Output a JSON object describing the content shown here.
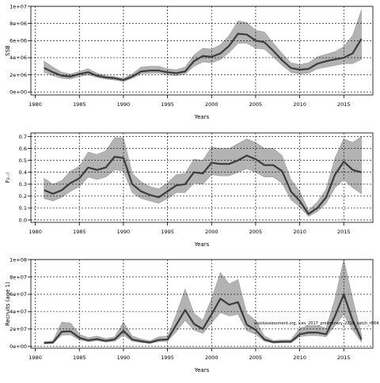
{
  "figure": {
    "watermark": "stockassessment.org, ices_2017_preliminary_2018_catch_r664"
  },
  "chart_data": [
    {
      "type": "line",
      "ylabel": "SSB",
      "xlabel": "Years",
      "xlim": [
        1979.5,
        2018.3
      ],
      "xticks": [
        1980,
        1985,
        1990,
        1995,
        2000,
        2005,
        2010,
        2015
      ],
      "ylim": [
        -350000,
        10000000
      ],
      "yticks": [
        0,
        2000000,
        4000000,
        6000000,
        8000000,
        10000000
      ],
      "ytick_labels": [
        "0e+00",
        "2e+06",
        "4e+06",
        "6e+06",
        "8e+06",
        "1e+07"
      ],
      "grid": true,
      "x": [
        1981,
        1982,
        1983,
        1984,
        1985,
        1986,
        1987,
        1988,
        1989,
        1990,
        1991,
        1992,
        1993,
        1994,
        1995,
        1996,
        1997,
        1998,
        1999,
        2000,
        2001,
        2002,
        2003,
        2004,
        2005,
        2006,
        2007,
        2008,
        2009,
        2010,
        2011,
        2012,
        2013,
        2014,
        2015,
        2016,
        2017
      ],
      "estimate": [
        2800000,
        2300000,
        1900000,
        1800000,
        2100000,
        2300000,
        1900000,
        1700000,
        1600000,
        1400000,
        1800000,
        2400000,
        2500000,
        2500000,
        2300000,
        2200000,
        2400000,
        3600000,
        4200000,
        4100000,
        4500000,
        5400000,
        6800000,
        6700000,
        6000000,
        5800000,
        4800000,
        3700000,
        2800000,
        2600000,
        2700000,
        3300000,
        3600000,
        3800000,
        4000000,
        4500000,
        6200000
      ],
      "lower": [
        2300000,
        1900000,
        1600000,
        1500000,
        1800000,
        2000000,
        1700000,
        1500000,
        1400000,
        1200000,
        1600000,
        2100000,
        2200000,
        2200000,
        2000000,
        1900000,
        2100000,
        3000000,
        3500000,
        3400000,
        3800000,
        4600000,
        5700000,
        5700000,
        5100000,
        5000000,
        4100000,
        3100000,
        2300000,
        2100000,
        2200000,
        2700000,
        2900000,
        3100000,
        3300000,
        3300000,
        3800000
      ],
      "upper": [
        3600000,
        2900000,
        2300000,
        2100000,
        2400000,
        2700000,
        2200000,
        1900000,
        1800000,
        1600000,
        2100000,
        2900000,
        3000000,
        3000000,
        2700000,
        2600000,
        2900000,
        4300000,
        5100000,
        5000000,
        5500000,
        6600000,
        8300000,
        8100000,
        7200000,
        7000000,
        5700000,
        4500000,
        3400000,
        3200000,
        3400000,
        4100000,
        4400000,
        4700000,
        5300000,
        6600000,
        9600000
      ]
    },
    {
      "type": "line",
      "ylabel": "F₂₋₇",
      "xlabel": "Years",
      "xlim": [
        1979.5,
        2018.3
      ],
      "xticks": [
        1980,
        1985,
        1990,
        1995,
        2000,
        2005,
        2010,
        2015
      ],
      "ylim": [
        -0.02,
        0.73
      ],
      "yticks": [
        0.0,
        0.1,
        0.2,
        0.3,
        0.4,
        0.5,
        0.6,
        0.7
      ],
      "ytick_labels": [
        "0.0",
        "0.1",
        "0.2",
        "0.3",
        "0.4",
        "0.5",
        "0.6",
        "0.7"
      ],
      "grid": true,
      "x": [
        1981,
        1982,
        1983,
        1984,
        1985,
        1986,
        1987,
        1988,
        1989,
        1990,
        1991,
        1992,
        1993,
        1994,
        1995,
        1996,
        1997,
        1998,
        1999,
        2000,
        2001,
        2002,
        2003,
        2004,
        2005,
        2006,
        2007,
        2008,
        2009,
        2010,
        2011,
        2012,
        2013,
        2014,
        2015,
        2016,
        2017
      ],
      "estimate": [
        0.25,
        0.22,
        0.25,
        0.31,
        0.35,
        0.44,
        0.42,
        0.44,
        0.53,
        0.52,
        0.3,
        0.24,
        0.21,
        0.19,
        0.24,
        0.29,
        0.3,
        0.4,
        0.39,
        0.48,
        0.47,
        0.47,
        0.5,
        0.54,
        0.51,
        0.46,
        0.46,
        0.41,
        0.24,
        0.16,
        0.05,
        0.1,
        0.19,
        0.38,
        0.49,
        0.42,
        0.4
      ],
      "lower": [
        0.18,
        0.16,
        0.19,
        0.24,
        0.28,
        0.36,
        0.34,
        0.36,
        0.42,
        0.41,
        0.23,
        0.18,
        0.16,
        0.14,
        0.18,
        0.23,
        0.23,
        0.31,
        0.3,
        0.38,
        0.37,
        0.37,
        0.4,
        0.43,
        0.4,
        0.36,
        0.36,
        0.31,
        0.17,
        0.11,
        0.03,
        0.07,
        0.14,
        0.27,
        0.34,
        0.27,
        0.22
      ],
      "upper": [
        0.35,
        0.3,
        0.33,
        0.41,
        0.45,
        0.57,
        0.55,
        0.58,
        0.69,
        0.69,
        0.39,
        0.32,
        0.28,
        0.26,
        0.31,
        0.38,
        0.39,
        0.51,
        0.5,
        0.61,
        0.6,
        0.6,
        0.64,
        0.68,
        0.65,
        0.6,
        0.6,
        0.54,
        0.34,
        0.24,
        0.08,
        0.15,
        0.26,
        0.52,
        0.68,
        0.65,
        0.7
      ]
    },
    {
      "type": "line",
      "ylabel": "Recruits (age 1)",
      "xlabel": "Years",
      "xlim": [
        1979.5,
        2018.3
      ],
      "xticks": [
        1980,
        1985,
        1990,
        1995,
        2000,
        2005,
        2010,
        2015
      ],
      "ylim": [
        -2000000,
        100000000
      ],
      "yticks": [
        0,
        20000000,
        40000000,
        60000000,
        80000000,
        100000000
      ],
      "ytick_labels": [
        "0e+00",
        "2e+07",
        "4e+07",
        "6e+07",
        "8e+07",
        "1e+08"
      ],
      "grid": true,
      "annotation": "stockassessment.org, ices_2017_preliminary_2018_catch_r664",
      "x": [
        1981,
        1982,
        1983,
        1984,
        1985,
        1986,
        1987,
        1988,
        1989,
        1990,
        1991,
        1992,
        1993,
        1994,
        1995,
        1996,
        1997,
        1998,
        1999,
        2000,
        2001,
        2002,
        2003,
        2004,
        2005,
        2006,
        2007,
        2008,
        2009,
        2010,
        2011,
        2012,
        2013,
        2014,
        2015,
        2016,
        2017
      ],
      "estimate": [
        4000000,
        4500000,
        17000000,
        17500000,
        10000000,
        7000000,
        8500000,
        6500000,
        8000000,
        18000000,
        8000000,
        6000000,
        4500000,
        7500000,
        8000000,
        25000000,
        42000000,
        26000000,
        20000000,
        37000000,
        55000000,
        48000000,
        51000000,
        25000000,
        19000000,
        8000000,
        5000000,
        5500000,
        5500000,
        14000000,
        16000000,
        16000000,
        14000000,
        35000000,
        60000000,
        30000000,
        8000000
      ],
      "lower": [
        3000000,
        3500000,
        13000000,
        13500000,
        7500000,
        5500000,
        6500000,
        5000000,
        6000000,
        13000000,
        6000000,
        4500000,
        3500000,
        5500000,
        6000000,
        17000000,
        30000000,
        19000000,
        15000000,
        27000000,
        39000000,
        35000000,
        37000000,
        18000000,
        14000000,
        6000000,
        3800000,
        4200000,
        4200000,
        11000000,
        12500000,
        12500000,
        11000000,
        24000000,
        37000000,
        19000000,
        5000000
      ],
      "upper": [
        5500000,
        6500000,
        28000000,
        27000000,
        14000000,
        10000000,
        12000000,
        9000000,
        11000000,
        28000000,
        12000000,
        8500000,
        6500000,
        11000000,
        12000000,
        37000000,
        66000000,
        38000000,
        30000000,
        55000000,
        85000000,
        72000000,
        77000000,
        38000000,
        30000000,
        12000000,
        7000000,
        7500000,
        7500000,
        21000000,
        24000000,
        24000000,
        21000000,
        55000000,
        100000000,
        55000000,
        14000000
      ]
    }
  ]
}
